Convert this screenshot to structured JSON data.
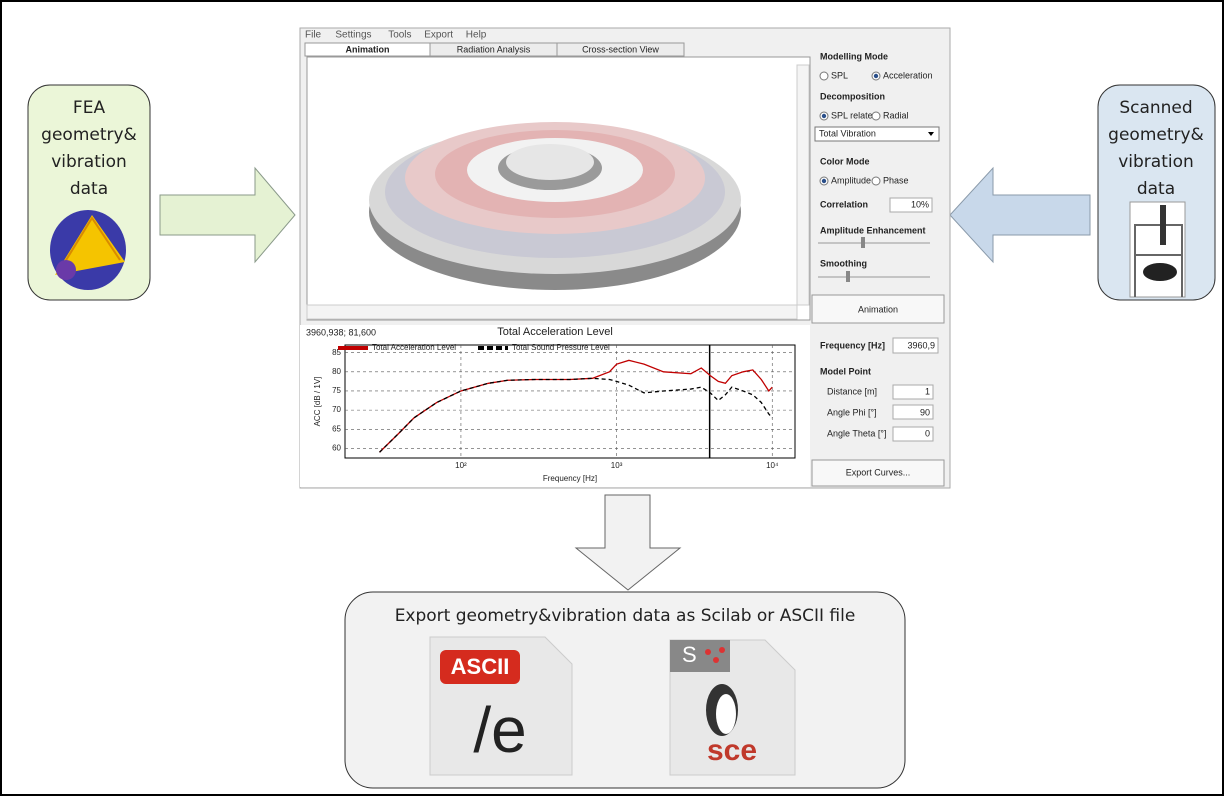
{
  "left_box": {
    "lines": [
      "FEA",
      "geometry&",
      "vibration",
      "data"
    ]
  },
  "right_box": {
    "lines": [
      "Scanned",
      "geometry&",
      "vibration",
      "data"
    ]
  },
  "app": {
    "menu": [
      "File",
      "Settings",
      "Tools",
      "Export",
      "Help"
    ],
    "tabs": [
      "Animation",
      "Radiation Analysis",
      "Cross-section View"
    ],
    "panel": {
      "modelling_mode": {
        "title": "Modelling Mode",
        "options": [
          "SPL",
          "Acceleration"
        ],
        "selected": 1
      },
      "decomposition": {
        "title": "Decomposition",
        "options": [
          "SPL related",
          "Radial"
        ],
        "selected": 0
      },
      "dropdown": "Total Vibration",
      "color_mode": {
        "title": "Color Mode",
        "options": [
          "Amplitude",
          "Phase"
        ],
        "selected": 0
      },
      "correlation": {
        "label": "Correlation",
        "value": "10%"
      },
      "amplitude_enhancement": "Amplitude Enhancement",
      "smoothing": "Smoothing",
      "button": "Animation"
    },
    "plot": {
      "type": "line",
      "coords": "3960,938; 81,600",
      "title": "Total Acceleration Level",
      "ylabel": "ACC [dB / 1V]",
      "xlabel": "Frequency [Hz]",
      "log_x": true,
      "grid": true,
      "xlim": [
        18,
        14000
      ],
      "ylim": [
        57.5,
        87
      ],
      "yticks": [
        60,
        65,
        70,
        75,
        80,
        85
      ],
      "xticks": [
        {
          "value": 100,
          "label": "10²"
        },
        {
          "value": 1000,
          "label": "10³"
        },
        {
          "value": 10000,
          "label": "10⁴"
        }
      ],
      "cursor_x": 3960.938,
      "x": [
        30,
        40,
        50,
        70,
        100,
        150,
        200,
        300,
        500,
        700,
        900,
        1000,
        1200,
        1500,
        2000,
        3000,
        3500,
        4000,
        4500,
        5000,
        5500,
        6500,
        7500,
        8500,
        9500,
        10000
      ],
      "series": [
        {
          "name": "Total Acceleration Level",
          "color": "#c00000",
          "dashed": false,
          "values": [
            59,
            64,
            68,
            72,
            75,
            77,
            77.8,
            78,
            78,
            78.3,
            80,
            82,
            83,
            82,
            80,
            79.5,
            81,
            79,
            77.5,
            77,
            79,
            80,
            80.5,
            78,
            75,
            76
          ]
        },
        {
          "name": "Total Sound Pressure Level",
          "color": "#000000",
          "dashed": true,
          "values": [
            59,
            64,
            68,
            72,
            75,
            77,
            77.8,
            78,
            78,
            78.3,
            78,
            77.5,
            76.5,
            74.5,
            75,
            75.5,
            76,
            74.5,
            72.5,
            74,
            76,
            75,
            74,
            72,
            69,
            68
          ]
        }
      ]
    },
    "lower_panel": {
      "frequency": {
        "label": "Frequency [Hz]",
        "value": "3960,9"
      },
      "model_point": "Model Point",
      "rows": [
        [
          "Distance [m]",
          "1"
        ],
        [
          "Angle Phi [°]",
          "90"
        ],
        [
          "Angle Theta [°]",
          "0"
        ]
      ],
      "button": "Export Curves..."
    }
  },
  "export_box": {
    "title": "Export geometry&vibration data as Scilab or ASCII file",
    "ascii_icon": [
      "ASCII",
      "/e"
    ],
    "sce_icon": [
      "S",
      "sce"
    ]
  }
}
